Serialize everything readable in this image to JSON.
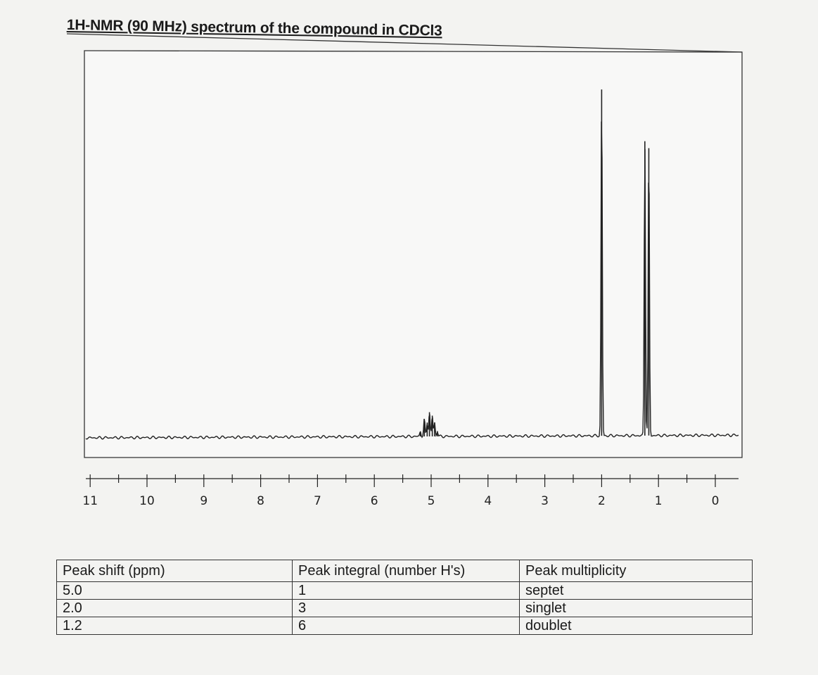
{
  "title": "1H-NMR (90 MHz) spectrum of the compound in CDCl3",
  "chart_data": {
    "type": "line",
    "title": "1H-NMR (90 MHz) spectrum of the compound in CDCl3",
    "xlabel": "",
    "ylabel": "",
    "xlim": [
      11,
      0
    ],
    "x_reversed": true,
    "x_ticks": [
      "11",
      "10",
      "9",
      "8",
      "7",
      "6",
      "5",
      "4",
      "3",
      "2",
      "1",
      "0"
    ],
    "grid": false,
    "peaks": [
      {
        "ppm": 5.19,
        "intensity": 1.5
      },
      {
        "ppm": 5.12,
        "intensity": 5
      },
      {
        "ppm": 5.07,
        "intensity": 4
      },
      {
        "ppm": 5.03,
        "intensity": 7
      },
      {
        "ppm": 4.98,
        "intensity": 6
      },
      {
        "ppm": 4.94,
        "intensity": 4
      },
      {
        "ppm": 4.89,
        "intensity": 1.5
      },
      {
        "ppm": 2.0,
        "intensity": 100
      },
      {
        "ppm": 1.24,
        "intensity": 85
      },
      {
        "ppm": 1.17,
        "intensity": 83
      }
    ]
  },
  "table": {
    "headers": [
      "Peak shift (ppm)",
      "Peak integral (number H's)",
      "Peak multiplicity"
    ],
    "rows": [
      [
        "5.0",
        "1",
        "septet"
      ],
      [
        "2.0",
        "3",
        "singlet"
      ],
      [
        "1.2",
        "6",
        "doublet"
      ]
    ]
  }
}
